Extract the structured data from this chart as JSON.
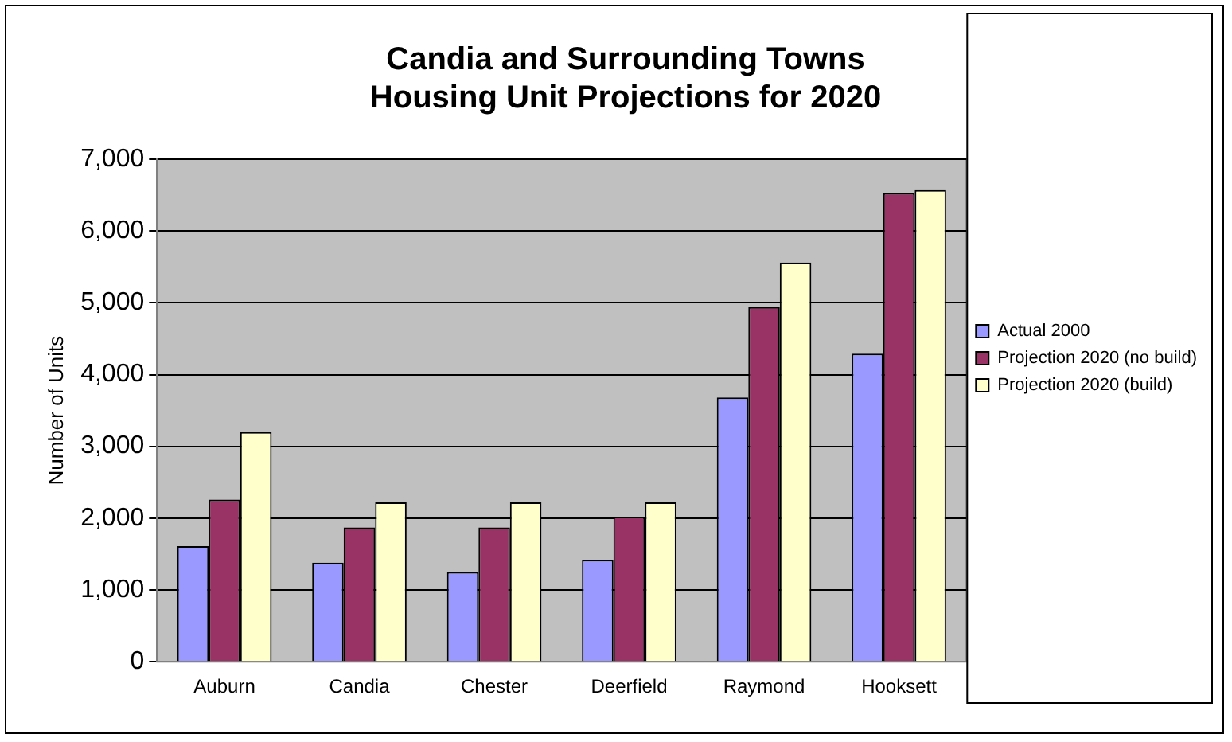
{
  "chart_data": {
    "type": "bar",
    "title": "Candia and Surrounding Towns\nHousing Unit Projections for 2020",
    "ylabel": "Number of Units",
    "categories": [
      "Auburn",
      "Candia",
      "Chester",
      "Deerfield",
      "Raymond",
      "Hooksett"
    ],
    "series": [
      {
        "name": "Actual 2000",
        "color": "#9999ff",
        "values": [
          1610,
          1380,
          1250,
          1420,
          3680,
          4290
        ]
      },
      {
        "name": "Projection 2020 (no build)",
        "color": "#993366",
        "values": [
          2260,
          1870,
          1870,
          2020,
          4940,
          6530
        ]
      },
      {
        "name": "Projection 2020 (build)",
        "color": "#ffffcc",
        "values": [
          3200,
          2220,
          2220,
          2220,
          5560,
          6570
        ]
      }
    ],
    "ylim": [
      0,
      7000
    ],
    "yticks": [
      {
        "value": 0,
        "label": "0"
      },
      {
        "value": 1000,
        "label": "1,000"
      },
      {
        "value": 2000,
        "label": "2,000"
      },
      {
        "value": 3000,
        "label": "3,000"
      },
      {
        "value": 4000,
        "label": "4,000"
      },
      {
        "value": 5000,
        "label": "5,000"
      },
      {
        "value": 6000,
        "label": "6,000"
      },
      {
        "value": 7000,
        "label": "7,000"
      }
    ],
    "grid": "y",
    "legend": "right"
  }
}
